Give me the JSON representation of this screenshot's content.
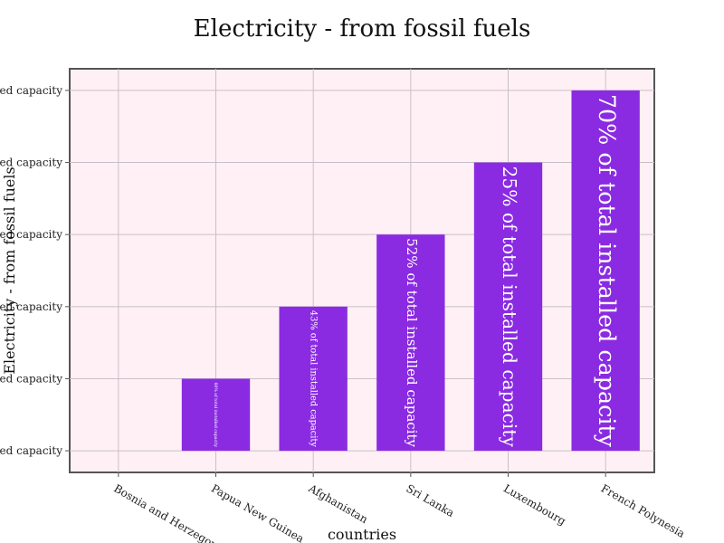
{
  "chart_data": {
    "type": "bar",
    "title": "Electricity - from fossil fuels",
    "xlabel": "countries",
    "ylabel": "Electricity - from fossil fuels",
    "categories": [
      "Bosnia and Herzegovina",
      "Papua New Guinea",
      "Afghanistan",
      "Sri Lanka",
      "Luxembourg",
      "French Polynesia"
    ],
    "y_ticks": [
      "lled capacity",
      "lled capacity",
      "lled capacity",
      "lled capacity",
      "lled capacity",
      "lled capacity"
    ],
    "values": [
      0,
      1,
      2,
      3,
      4,
      5
    ],
    "value_labels": [
      "",
      "60% of total installed capacity",
      "43% of total installed capacity",
      "52% of total installed capacity",
      "25% of total installed capacity",
      "70% of total installed capacity"
    ],
    "ylim": [
      -0.3,
      5.3
    ],
    "grid": true,
    "colors": {
      "bar": "#8a2be2",
      "plot_bg": "#fff0f5",
      "grid": "#c8c0c8",
      "frame": "#555555"
    }
  }
}
